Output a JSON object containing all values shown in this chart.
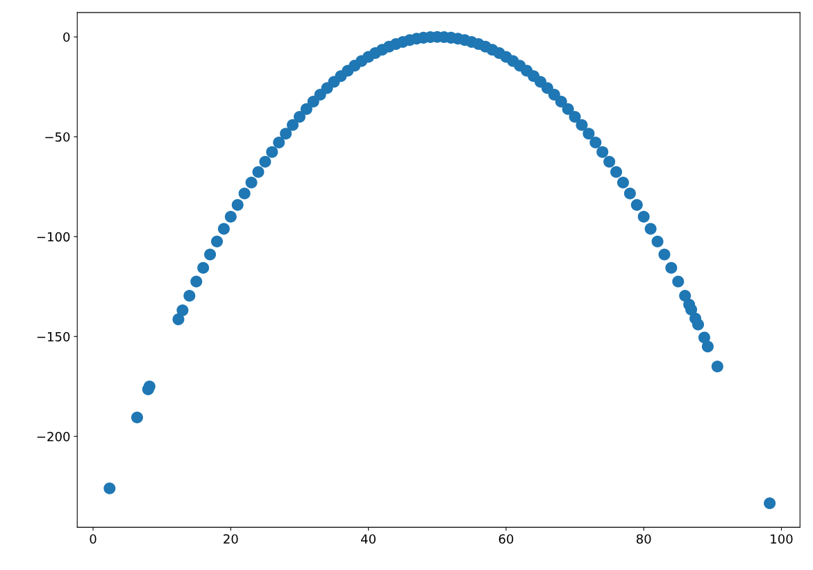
{
  "chart_data": {
    "type": "scatter",
    "marker": "circle",
    "grid": false,
    "xlim": [
      -2.3,
      102.7
    ],
    "ylim": [
      -245.5,
      12.2
    ],
    "xticks": [
      0,
      20,
      40,
      60,
      80,
      100
    ],
    "yticks": [
      0,
      {
        "value": -50,
        "label": "−50"
      },
      {
        "value": -100,
        "label": "−100"
      },
      {
        "value": -150,
        "label": "−150"
      },
      {
        "value": -200,
        "label": "−200"
      }
    ],
    "series": [
      {
        "color": "#1f77b4",
        "x": [
          2.4,
          6.4,
          8.0,
          8.2,
          12.4,
          13,
          14,
          15,
          16,
          17,
          18,
          19,
          20,
          21,
          22,
          23,
          24,
          25,
          26,
          27,
          28,
          29,
          30,
          31,
          32,
          33,
          34,
          35,
          36,
          37,
          38,
          39,
          40,
          41,
          42,
          43,
          44,
          45,
          46,
          47,
          48,
          49,
          50,
          51,
          52,
          53,
          54,
          55,
          56,
          57,
          58,
          59,
          60,
          61,
          62,
          63,
          64,
          65,
          66,
          67,
          68,
          69,
          70,
          71,
          72,
          73,
          74,
          75,
          76,
          77,
          78,
          79,
          80,
          81,
          82,
          83,
          84,
          85,
          86,
          86.6,
          86.9,
          87.5,
          87.9,
          88.8,
          89.3,
          90.7,
          98.3
        ],
        "values": [
          -226,
          -190.5,
          -176.5,
          -175,
          -141.4,
          -136.9,
          -129.6,
          -122.5,
          -115.6,
          -108.9,
          -102.4,
          -96.1,
          -90,
          -84.1,
          -78.4,
          -72.9,
          -67.6,
          -62.5,
          -57.6,
          -52.9,
          -48.4,
          -44.1,
          -40,
          -36.1,
          -32.4,
          -28.9,
          -25.6,
          -22.5,
          -19.6,
          -16.9,
          -14.4,
          -12.1,
          -10,
          -8.1,
          -6.4,
          -4.9,
          -3.6,
          -2.5,
          -1.6,
          -0.9,
          -0.4,
          -0.1,
          0,
          -0.1,
          -0.4,
          -0.9,
          -1.6,
          -2.5,
          -3.6,
          -4.9,
          -6.4,
          -8.1,
          -10,
          -12.1,
          -14.4,
          -16.9,
          -19.6,
          -22.5,
          -25.6,
          -28.9,
          -32.4,
          -36.1,
          -40,
          -44.1,
          -48.4,
          -52.9,
          -57.6,
          -62.5,
          -67.6,
          -72.9,
          -78.4,
          -84.1,
          -90,
          -96.1,
          -102.4,
          -108.9,
          -115.6,
          -122.5,
          -129.6,
          -134,
          -136.5,
          -141,
          -144,
          -150.5,
          -155,
          -165,
          -233.5
        ]
      }
    ]
  }
}
